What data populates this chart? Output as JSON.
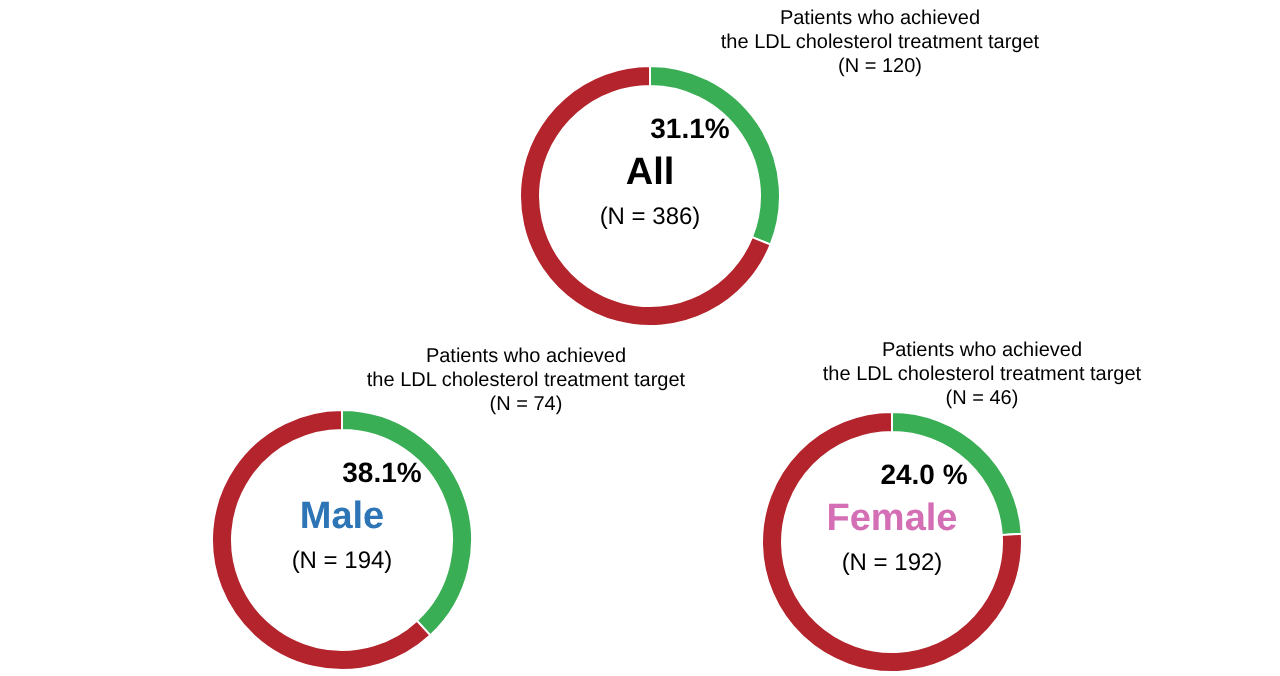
{
  "chart_data": [
    {
      "type": "donut",
      "title": "All",
      "subtitle": "(N = 386)",
      "categories": [
        "Patients who achieved\nthe LDL cholesterol treatment target\n(N = 120)",
        null
      ],
      "values": [
        31.1,
        68.9
      ],
      "colors": [
        "#3aae55",
        "#b3242c"
      ],
      "value_labels": [
        "31.1%",
        null
      ]
    },
    {
      "type": "donut",
      "title": "Male",
      "subtitle": "(N = 194)",
      "categories": [
        "Patients who achieved\nthe LDL cholesterol treatment target\n(N = 74)",
        null
      ],
      "values": [
        38.1,
        61.9
      ],
      "colors": [
        "#3aae55",
        "#b3242c"
      ],
      "value_labels": [
        "38.1%",
        null
      ]
    },
    {
      "type": "donut",
      "title": "Female",
      "subtitle": "(N = 192)",
      "categories": [
        "Patients who achieved\nthe LDL cholesterol treatment target\n(N = 46)",
        null
      ],
      "values": [
        24.0,
        76.0
      ],
      "colors": [
        "#3aae55",
        "#b3242c"
      ],
      "value_labels": [
        "24.0 %",
        null
      ]
    }
  ]
}
